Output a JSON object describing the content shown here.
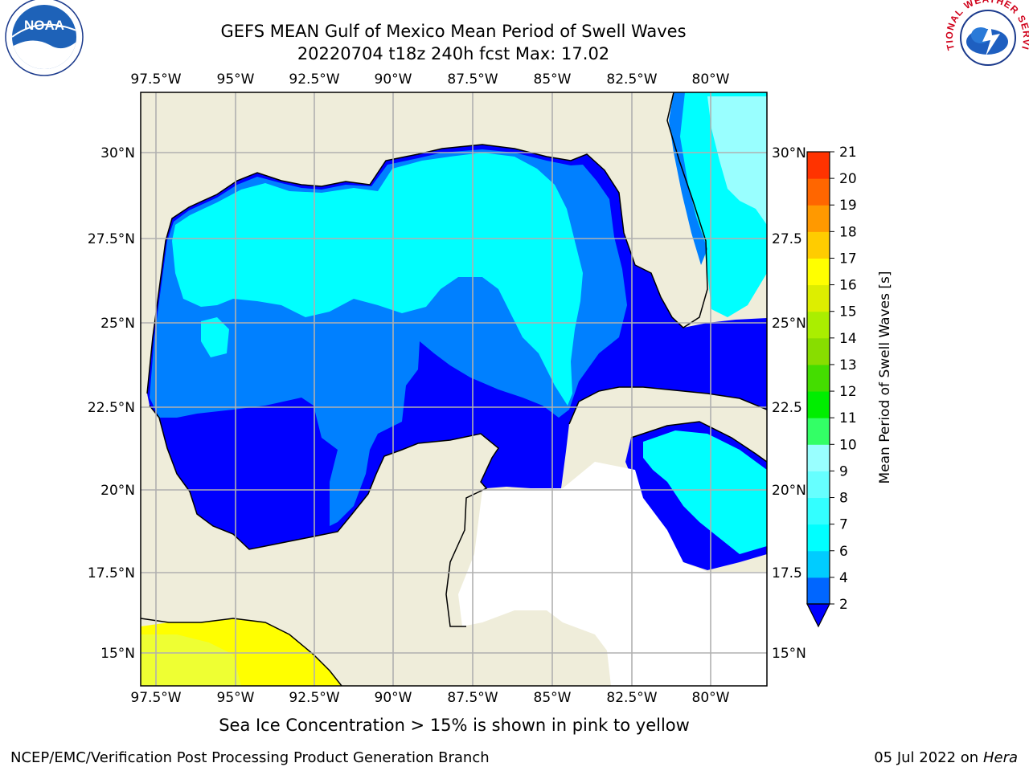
{
  "title": {
    "line1": "GEFS MEAN Gulf of Mexico Mean Period of Swell Waves",
    "line2": "20220704 t18z 240h fcst   Max: 17.02"
  },
  "map": {
    "lon_labels": [
      "97.5°W",
      "95°W",
      "92.5°W",
      "90°W",
      "87.5°W",
      "85°W",
      "82.5°W",
      "80°W"
    ],
    "lat_labels": [
      "30°N",
      "27.5°N",
      "25°N",
      "22.5°N",
      "20°N",
      "17.5°N",
      "15°N"
    ],
    "lat_labels_right": [
      "30°N",
      "27.5",
      "25°N",
      "22.5",
      "20°N",
      "17.5",
      "15°N"
    ],
    "land_color": "#efedda",
    "grid": true
  },
  "colorbar": {
    "label": "Mean Period of Swell Waves [s]",
    "ticks": [
      "2",
      "4",
      "6",
      "7",
      "8",
      "9",
      "10",
      "11",
      "12",
      "13",
      "14",
      "15",
      "16",
      "17",
      "18",
      "19",
      "20",
      "21"
    ],
    "colors": [
      "#0066ff",
      "#00ccff",
      "#00ffff",
      "#33ffff",
      "#66ffff",
      "#99ffff",
      "#33ff66",
      "#00ee00",
      "#44dd00",
      "#88dd00",
      "#aaee00",
      "#ddee00",
      "#ffff00",
      "#ffcc00",
      "#ff9900",
      "#ff6600",
      "#ff3300",
      "#ff0000"
    ],
    "underflow_color": "#0000ff"
  },
  "footer": {
    "note": "Sea Ice Concentration > 15% is shown in pink to yellow",
    "credit": "NCEP/EMC/Verification Post Processing Product Generation Branch",
    "date": "05 Jul 2022 on ",
    "host": "Hera"
  },
  "logos": {
    "left": "noaa-logo",
    "left_text": "NOAA",
    "right": "nws-logo",
    "right_text": "NATIONAL WEATHER SERVICE"
  }
}
